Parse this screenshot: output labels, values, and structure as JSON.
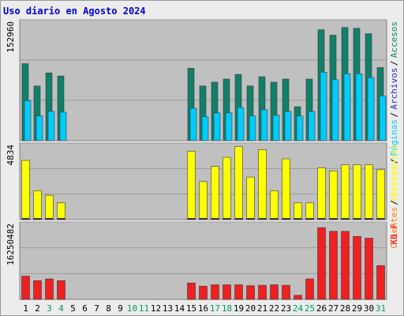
{
  "title": "Uso diario en Agosto 2024",
  "chart_data": [
    {
      "type": "bar",
      "panel": "top",
      "ymax_label": "152960",
      "ylim": [
        0,
        152960
      ],
      "categories": [
        "1",
        "2",
        "3",
        "4",
        "5",
        "6",
        "7",
        "8",
        "9",
        "10",
        "11",
        "12",
        "13",
        "14",
        "15",
        "16",
        "17",
        "18",
        "19",
        "20",
        "21",
        "22",
        "23",
        "24",
        "25",
        "26",
        "27",
        "28",
        "29",
        "30",
        "31"
      ],
      "weekend_days": [
        "3",
        "4",
        "10",
        "11",
        "17",
        "18",
        "24",
        "25",
        "31"
      ],
      "legend": [
        {
          "name": "Accesos",
          "color": "#0c8a64"
        },
        {
          "name": "Archivos",
          "color": "#2828c8"
        },
        {
          "name": "Páginas",
          "color": "#00ccff"
        },
        {
          "name": "Visitas",
          "color": "#ffff00"
        }
      ],
      "series": [
        {
          "name": "Accesos",
          "color": "#10806a",
          "values": [
            100000,
            71000,
            88000,
            84000,
            0,
            0,
            0,
            0,
            0,
            0,
            0,
            0,
            0,
            0,
            94000,
            71000,
            76000,
            80000,
            86000,
            71000,
            83000,
            76000,
            80000,
            44000,
            80000,
            144000,
            137000,
            147000,
            146000,
            139000,
            95000
          ]
        },
        {
          "name": "Páginas",
          "color": "#00ccff",
          "values": [
            52000,
            32000,
            38000,
            37000,
            0,
            0,
            0,
            0,
            0,
            0,
            0,
            0,
            0,
            0,
            42000,
            31000,
            36000,
            36000,
            43000,
            32000,
            40000,
            33000,
            38000,
            32000,
            38000,
            89000,
            79000,
            87000,
            87000,
            82000,
            58000
          ]
        }
      ]
    },
    {
      "type": "bar",
      "panel": "middle",
      "ymax_label": "4834",
      "ylim": [
        0,
        4834
      ],
      "legend": [
        {
          "name": "Visitantes",
          "color": "#ffff00"
        },
        {
          "name": "Clientes",
          "color": "#ff8000"
        }
      ],
      "series": [
        {
          "name": "Visitantes",
          "color": "#ffff00",
          "values": [
            3900,
            1900,
            1600,
            1100,
            0,
            0,
            0,
            0,
            0,
            0,
            0,
            0,
            0,
            0,
            4500,
            2500,
            3500,
            4100,
            4800,
            2800,
            4600,
            1900,
            4000,
            1100,
            1100,
            3400,
            3200,
            3600,
            3600,
            3600,
            3300
          ]
        }
      ]
    },
    {
      "type": "bar",
      "panel": "bottom",
      "ymax_label": "16250482",
      "ylim": [
        0,
        16250482
      ],
      "legend": [
        {
          "name": "KB F",
          "color": "#ff0000"
        }
      ],
      "series": [
        {
          "name": "KB F",
          "color": "#ee2020",
          "values": [
            5100000,
            4100000,
            4500000,
            4100000,
            0,
            0,
            0,
            0,
            0,
            0,
            0,
            0,
            0,
            0,
            3600000,
            2900000,
            3200000,
            3200000,
            3200000,
            3000000,
            3100000,
            3200000,
            3100000,
            900000,
            4500000,
            15700000,
            14900000,
            14900000,
            13800000,
            13400000,
            7400000
          ]
        }
      ]
    }
  ]
}
